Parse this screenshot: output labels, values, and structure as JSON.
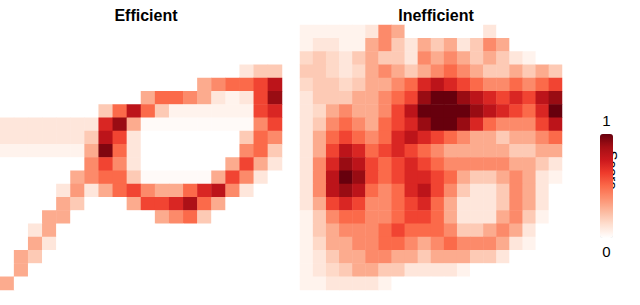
{
  "chart_data": {
    "type": "heatmap",
    "tick_labels": false,
    "colorbar": {
      "label": "Score",
      "range": [
        0,
        1
      ],
      "ticks": [
        0,
        1
      ]
    },
    "panels": [
      {
        "title": "Efficient",
        "cells": [
          [
            0,
            0,
            0,
            0,
            0,
            0,
            0,
            0,
            0,
            0,
            0,
            0,
            0,
            0,
            0,
            0,
            0,
            0,
            0,
            0
          ],
          [
            0,
            0,
            0,
            0,
            0,
            0,
            0,
            0,
            0,
            0,
            0,
            0,
            0,
            0,
            0,
            0,
            0,
            0,
            0,
            0
          ],
          [
            0,
            0,
            0,
            0,
            0,
            0,
            0,
            0,
            0,
            0,
            0,
            0,
            0,
            0,
            0,
            0,
            0,
            0,
            0,
            0
          ],
          [
            0,
            0,
            0,
            0,
            0,
            0,
            0,
            0,
            0,
            0,
            0,
            0,
            0,
            0,
            0,
            0,
            0,
            0.1,
            0.2,
            0.2
          ],
          [
            0,
            0,
            0,
            0,
            0,
            0,
            0,
            0,
            0,
            0,
            0,
            0,
            0,
            0,
            0.3,
            0.4,
            0.5,
            0.5,
            0.6,
            0.8
          ],
          [
            0,
            0,
            0,
            0,
            0,
            0,
            0,
            0,
            0,
            0,
            0.3,
            0.5,
            0.5,
            0.4,
            0.3,
            0.1,
            0.05,
            0.1,
            0.6,
            0.9
          ],
          [
            0,
            0,
            0,
            0,
            0,
            0,
            0,
            0.2,
            0.5,
            0.8,
            0.5,
            0.2,
            0.05,
            0.05,
            0.05,
            0.05,
            0.05,
            0.05,
            0.6,
            0.7
          ],
          [
            0.1,
            0.1,
            0.1,
            0.1,
            0.1,
            0.1,
            0.1,
            0.7,
            0.9,
            0.3,
            0.02,
            0.02,
            0.02,
            0.02,
            0.02,
            0.02,
            0.02,
            0.02,
            0.4,
            0.6
          ],
          [
            0.1,
            0.1,
            0.1,
            0.1,
            0.1,
            0.1,
            0.2,
            0.8,
            0.6,
            0.1,
            0,
            0,
            0,
            0,
            0,
            0,
            0,
            0.2,
            0.5,
            0.4
          ],
          [
            0.05,
            0.05,
            0.05,
            0.05,
            0.05,
            0.05,
            0.3,
            0.95,
            0.5,
            0.1,
            0,
            0,
            0,
            0,
            0,
            0,
            0,
            0.4,
            0.5,
            0.2
          ],
          [
            0,
            0,
            0,
            0,
            0,
            0,
            0.4,
            0.6,
            0.4,
            0.1,
            0,
            0,
            0,
            0,
            0,
            0,
            0.3,
            0.6,
            0.3,
            0.1
          ],
          [
            0,
            0,
            0,
            0,
            0,
            0.3,
            0.4,
            0.5,
            0.5,
            0.2,
            0.02,
            0.02,
            0.02,
            0.02,
            0.02,
            0.3,
            0.6,
            0.4,
            0.1,
            0
          ],
          [
            0,
            0,
            0,
            0,
            0.1,
            0.35,
            0.1,
            0.3,
            0.5,
            0.6,
            0.4,
            0.3,
            0.3,
            0.5,
            0.7,
            0.8,
            0.4,
            0.1,
            0,
            0
          ],
          [
            0,
            0,
            0,
            0,
            0.3,
            0.2,
            0,
            0,
            0,
            0.3,
            0.6,
            0.6,
            0.7,
            0.85,
            0.5,
            0.3,
            0,
            0,
            0,
            0
          ],
          [
            0,
            0,
            0,
            0.3,
            0.3,
            0,
            0,
            0,
            0,
            0,
            0,
            0.3,
            0.4,
            0.5,
            0.2,
            0,
            0,
            0,
            0,
            0
          ],
          [
            0,
            0,
            0.1,
            0.3,
            0,
            0,
            0,
            0,
            0,
            0,
            0,
            0,
            0,
            0,
            0,
            0,
            0,
            0,
            0,
            0
          ],
          [
            0,
            0,
            0.3,
            0.1,
            0,
            0,
            0,
            0,
            0,
            0,
            0,
            0,
            0,
            0,
            0,
            0,
            0,
            0,
            0,
            0
          ],
          [
            0,
            0.3,
            0.2,
            0,
            0,
            0,
            0,
            0,
            0,
            0,
            0,
            0,
            0,
            0,
            0,
            0,
            0,
            0,
            0,
            0
          ],
          [
            0,
            0.3,
            0,
            0,
            0,
            0,
            0,
            0,
            0,
            0,
            0,
            0,
            0,
            0,
            0,
            0,
            0,
            0,
            0,
            0
          ],
          [
            0.3,
            0,
            0,
            0,
            0,
            0,
            0,
            0,
            0,
            0,
            0,
            0,
            0,
            0,
            0,
            0,
            0,
            0,
            0,
            0
          ]
        ]
      },
      {
        "title": "Inefficient",
        "cells": [
          [
            0.05,
            0.05,
            0.05,
            0.05,
            0.05,
            0.1,
            0.4,
            0.3,
            0,
            0,
            0,
            0,
            0,
            0,
            0.1,
            0,
            0,
            0,
            0,
            0
          ],
          [
            0.05,
            0.1,
            0.1,
            0.05,
            0.05,
            0.3,
            0.4,
            0.2,
            0.1,
            0.3,
            0.2,
            0.3,
            0.1,
            0.2,
            0.4,
            0.3,
            0,
            0,
            0,
            0
          ],
          [
            0.15,
            0.2,
            0.15,
            0.1,
            0.2,
            0.3,
            0.2,
            0.2,
            0.1,
            0.4,
            0.3,
            0.4,
            0.3,
            0.2,
            0.3,
            0.2,
            0.1,
            0.05,
            0,
            0
          ],
          [
            0.2,
            0.2,
            0.15,
            0.1,
            0.15,
            0.3,
            0.4,
            0.3,
            0.2,
            0.3,
            0.4,
            0.5,
            0.4,
            0.3,
            0.2,
            0.2,
            0.3,
            0.2,
            0.3,
            0.2
          ],
          [
            0.15,
            0.2,
            0.2,
            0.15,
            0.2,
            0.3,
            0.3,
            0.4,
            0.5,
            0.7,
            0.8,
            0.7,
            0.6,
            0.5,
            0.4,
            0.4,
            0.5,
            0.4,
            0.5,
            0.6
          ],
          [
            0.1,
            0.2,
            0.2,
            0.2,
            0.3,
            0.3,
            0.4,
            0.5,
            0.6,
            0.9,
            1,
            1,
            0.9,
            0.8,
            0.7,
            0.6,
            0.7,
            0.6,
            0.8,
            0.9
          ],
          [
            0.1,
            0.15,
            0.3,
            0.4,
            0.3,
            0.3,
            0.4,
            0.6,
            0.8,
            1,
            1,
            1,
            1,
            0.9,
            0.8,
            0.7,
            0.6,
            0.5,
            0.7,
            1
          ],
          [
            0.1,
            0.2,
            0.4,
            0.5,
            0.4,
            0.3,
            0.5,
            0.6,
            0.7,
            0.9,
            1,
            1,
            0.9,
            0.7,
            0.5,
            0.4,
            0.4,
            0.4,
            0.6,
            0.8
          ],
          [
            0.1,
            0.3,
            0.5,
            0.6,
            0.5,
            0.4,
            0.5,
            0.7,
            0.8,
            0.7,
            0.6,
            0.5,
            0.4,
            0.3,
            0.3,
            0.2,
            0.3,
            0.3,
            0.4,
            0.5
          ],
          [
            0.1,
            0.3,
            0.6,
            0.8,
            0.7,
            0.5,
            0.6,
            0.7,
            0.6,
            0.5,
            0.4,
            0.3,
            0.3,
            0.3,
            0.3,
            0.3,
            0.2,
            0.2,
            0.3,
            0.3
          ],
          [
            0.1,
            0.4,
            0.7,
            0.9,
            0.8,
            0.6,
            0.5,
            0.6,
            0.7,
            0.6,
            0.5,
            0.4,
            0.4,
            0.4,
            0.4,
            0.4,
            0.3,
            0.3,
            0.2,
            0.1
          ],
          [
            0.1,
            0.4,
            0.8,
            1,
            0.9,
            0.6,
            0.5,
            0.6,
            0.7,
            0.7,
            0.6,
            0.5,
            0.3,
            0.2,
            0.2,
            0.3,
            0.4,
            0.3,
            0.1,
            0.05
          ],
          [
            0.1,
            0.4,
            0.8,
            0.9,
            0.8,
            0.5,
            0.4,
            0.5,
            0.7,
            0.8,
            0.6,
            0.4,
            0.2,
            0.1,
            0.1,
            0.2,
            0.4,
            0.3,
            0.1,
            0
          ],
          [
            0.1,
            0.3,
            0.6,
            0.7,
            0.6,
            0.4,
            0.4,
            0.5,
            0.6,
            0.7,
            0.5,
            0.3,
            0.1,
            0.1,
            0.1,
            0.2,
            0.4,
            0.3,
            0.1,
            0
          ],
          [
            0.05,
            0.2,
            0.4,
            0.5,
            0.5,
            0.4,
            0.4,
            0.5,
            0.6,
            0.6,
            0.5,
            0.3,
            0.1,
            0.1,
            0.1,
            0.3,
            0.4,
            0.2,
            0.05,
            0
          ],
          [
            0.05,
            0.2,
            0.3,
            0.4,
            0.4,
            0.4,
            0.5,
            0.6,
            0.5,
            0.5,
            0.5,
            0.4,
            0.2,
            0.2,
            0.3,
            0.4,
            0.3,
            0.1,
            0,
            0
          ],
          [
            0.05,
            0.15,
            0.3,
            0.3,
            0.4,
            0.4,
            0.5,
            0.5,
            0.4,
            0.3,
            0.4,
            0.5,
            0.4,
            0.4,
            0.4,
            0.3,
            0.1,
            0.05,
            0,
            0
          ],
          [
            0.05,
            0.1,
            0.2,
            0.3,
            0.3,
            0.4,
            0.4,
            0.3,
            0.3,
            0.2,
            0.3,
            0.3,
            0.3,
            0.2,
            0.2,
            0.1,
            0,
            0,
            0,
            0
          ],
          [
            0.05,
            0.1,
            0.15,
            0.2,
            0.3,
            0.3,
            0.2,
            0.2,
            0.1,
            0.1,
            0.1,
            0.1,
            0.05,
            0,
            0,
            0,
            0,
            0,
            0,
            0
          ],
          [
            0.05,
            0.05,
            0.1,
            0.1,
            0.1,
            0.1,
            0.05,
            0,
            0,
            0,
            0,
            0,
            0,
            0,
            0,
            0,
            0,
            0,
            0,
            0
          ]
        ]
      }
    ]
  }
}
